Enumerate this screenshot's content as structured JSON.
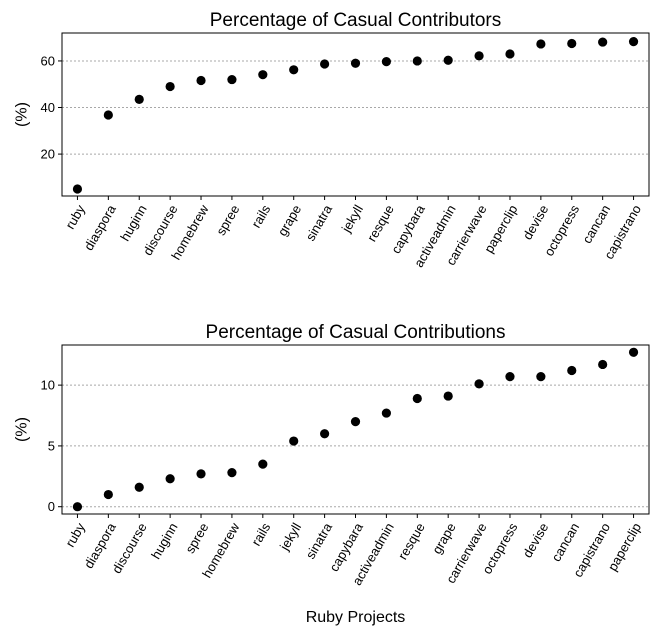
{
  "chart_data": [
    {
      "type": "scatter",
      "title": "Percentage of Casual Contributors",
      "xlabel": "",
      "ylabel": "(%)",
      "ylim": [
        2,
        72
      ],
      "yticks": [
        20,
        40,
        60
      ],
      "grid": true,
      "categories": [
        "ruby",
        "diaspora",
        "huginn",
        "discourse",
        "homebrew",
        "spree",
        "rails",
        "grape",
        "sinatra",
        "jekyll",
        "resque",
        "capybara",
        "activeadmin",
        "carrierwave",
        "paperclip",
        "devise",
        "octopress",
        "cancan",
        "capistrano"
      ],
      "values": [
        5.0,
        36.8,
        43.5,
        49.0,
        51.6,
        52.0,
        54.1,
        56.2,
        58.7,
        59.0,
        59.7,
        60.0,
        60.3,
        62.2,
        63.0,
        67.3,
        67.5,
        68.1,
        68.3
      ]
    },
    {
      "type": "scatter",
      "title": "Percentage of Casual Contributions",
      "xlabel": "Ruby Projects",
      "ylabel": "(%)",
      "ylim": [
        -0.6,
        13.3
      ],
      "yticks": [
        0,
        5,
        10
      ],
      "grid": true,
      "categories": [
        "ruby",
        "diaspora",
        "discourse",
        "huginn",
        "spree",
        "homebrew",
        "rails",
        "jekyll",
        "sinatra",
        "capybara",
        "activeadmin",
        "resque",
        "grape",
        "carrierwave",
        "octopress",
        "devise",
        "cancan",
        "capistrano",
        "paperclip"
      ],
      "values": [
        0.0,
        1.0,
        1.6,
        2.3,
        2.7,
        2.8,
        3.5,
        5.4,
        6.0,
        7.0,
        7.7,
        8.9,
        9.1,
        10.1,
        10.7,
        10.7,
        11.2,
        11.7,
        12.7
      ]
    }
  ]
}
